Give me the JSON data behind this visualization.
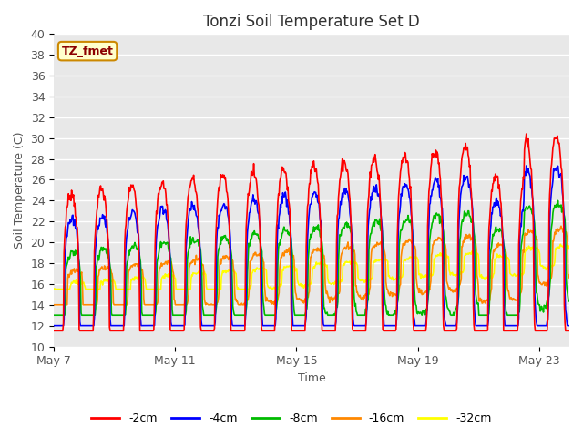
{
  "title": "Tonzi Soil Temperature Set D",
  "xlabel": "Time",
  "ylabel": "Soil Temperature (C)",
  "ylim": [
    10,
    40
  ],
  "background_color": "#e8e8e8",
  "plot_bg_color": "#e8e8e8",
  "line_colors": {
    "-2cm": "#ff0000",
    "-4cm": "#0000ff",
    "-8cm": "#00bb00",
    "-16cm": "#ff8800",
    "-32cm": "#ffff00"
  },
  "legend_label": "TZ_fmet",
  "xtick_labels": [
    "May 7",
    "May 11",
    "May 15",
    "May 19",
    "May 23"
  ],
  "xtick_positions": [
    0,
    4,
    8,
    12,
    16
  ]
}
